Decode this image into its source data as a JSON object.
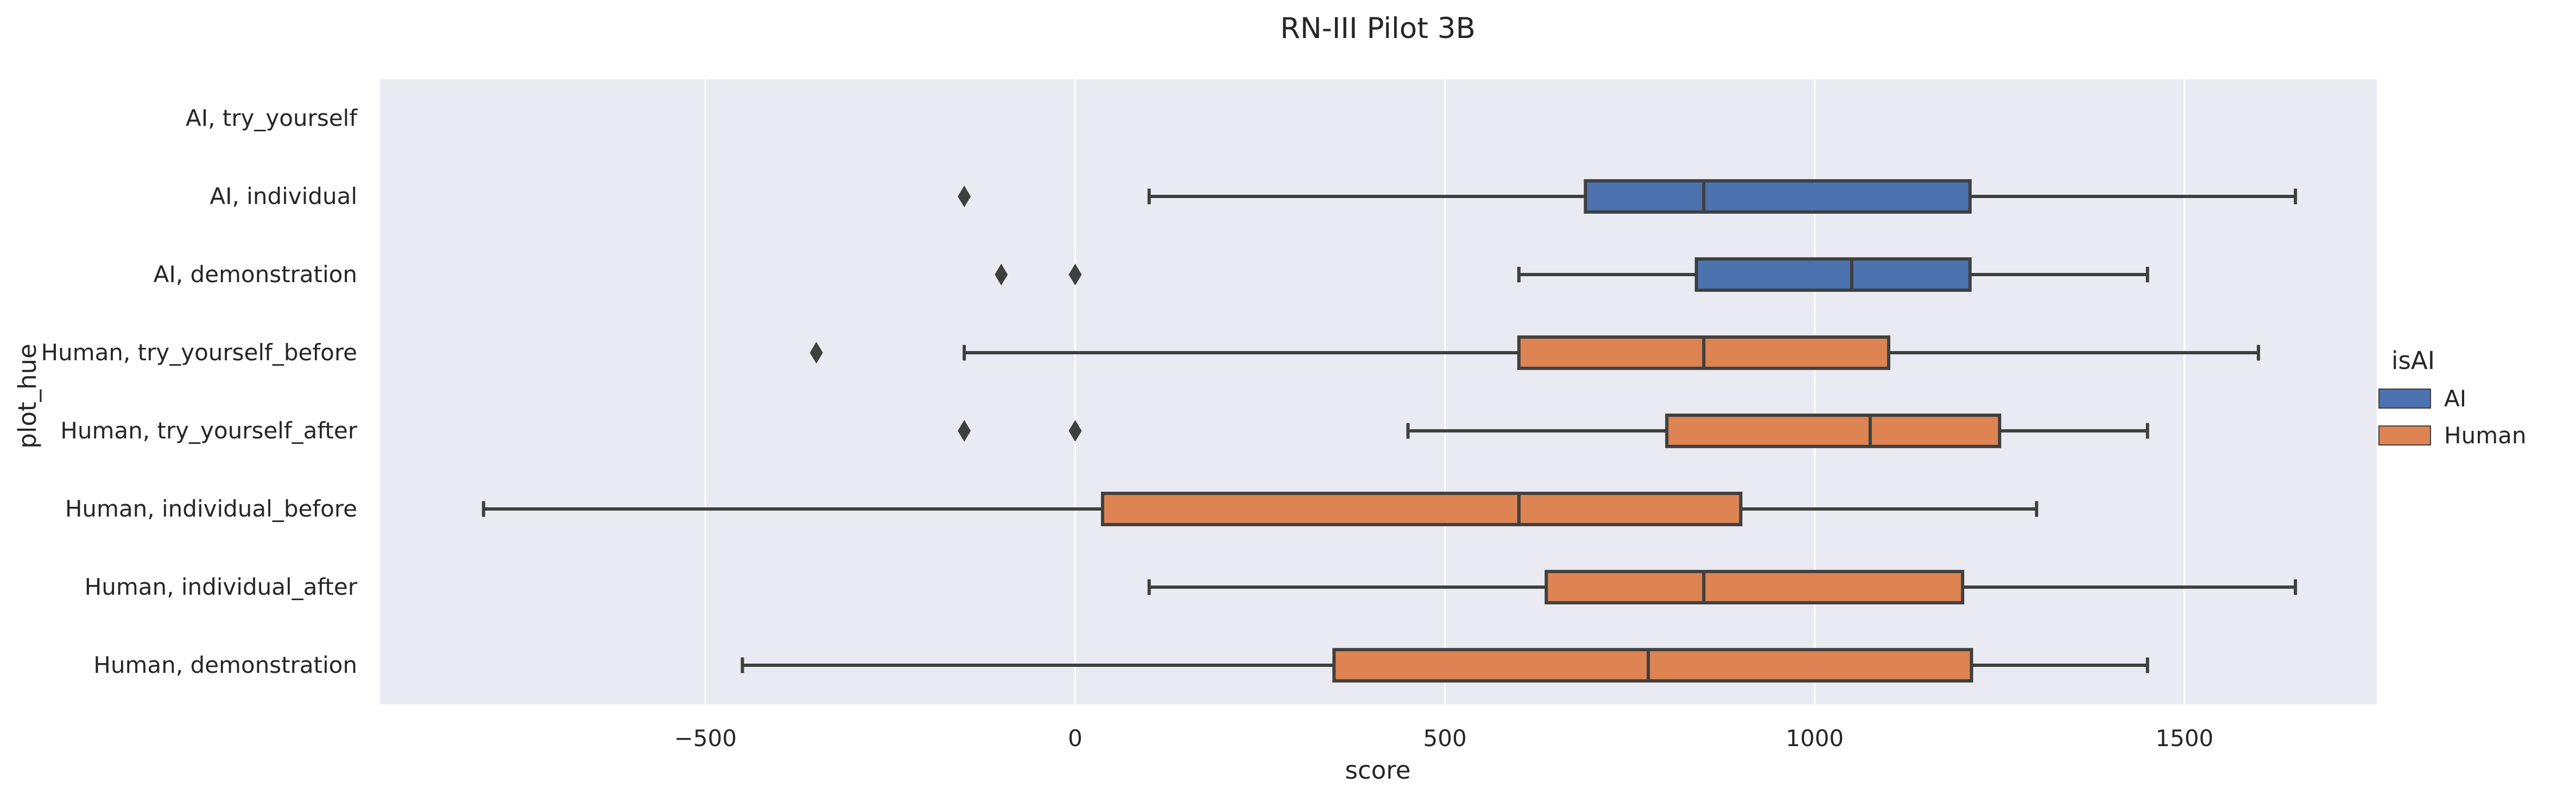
{
  "chart_data": {
    "type": "box",
    "orientation": "horizontal",
    "title": "RN-III Pilot 3B",
    "xlabel": "score",
    "ylabel": "plot_hue",
    "xlim": [
      -940,
      1760
    ],
    "xticks": [
      -500,
      0,
      500,
      1000,
      1500
    ],
    "xtick_labels": [
      "−500",
      "0",
      "500",
      "1000",
      "1500"
    ],
    "grid": true,
    "legend": {
      "title": "isAI",
      "placement": "right",
      "entries": [
        {
          "label": "AI",
          "color": "#4c72b0"
        },
        {
          "label": "Human",
          "color": "#dd8452"
        }
      ]
    },
    "categories": [
      "AI, try_yourself",
      "AI, individual",
      "AI, demonstration",
      "Human, try_yourself_before",
      "Human, try_yourself_after",
      "Human, individual_before",
      "Human, individual_after",
      "Human, demonstration"
    ],
    "boxes": [
      {
        "category": "AI, individual",
        "group": "AI",
        "whisker_low": 100,
        "q1": 690,
        "median": 850,
        "q3": 1210,
        "whisker_high": 1650,
        "outliers": [
          -150
        ]
      },
      {
        "category": "AI, demonstration",
        "group": "AI",
        "whisker_low": 600,
        "q1": 840,
        "median": 1050,
        "q3": 1210,
        "whisker_high": 1450,
        "outliers": [
          -100,
          0
        ]
      },
      {
        "category": "Human, try_yourself_before",
        "group": "Human",
        "whisker_low": -150,
        "q1": 600,
        "median": 850,
        "q3": 1100,
        "whisker_high": 1600,
        "outliers": [
          -350
        ]
      },
      {
        "category": "Human, try_yourself_after",
        "group": "Human",
        "whisker_low": 450,
        "q1": 800,
        "median": 1075,
        "q3": 1250,
        "whisker_high": 1450,
        "outliers": [
          -150,
          0
        ]
      },
      {
        "category": "Human, individual_before",
        "group": "Human",
        "whisker_low": -800,
        "q1": 37,
        "median": 600,
        "q3": 900,
        "whisker_high": 1300,
        "outliers": []
      },
      {
        "category": "Human, individual_after",
        "group": "Human",
        "whisker_low": 100,
        "q1": 637,
        "median": 850,
        "q3": 1200,
        "whisker_high": 1650,
        "outliers": []
      },
      {
        "category": "Human, demonstration",
        "group": "Human",
        "whisker_low": -450,
        "q1": 350,
        "median": 775,
        "q3": 1212,
        "whisker_high": 1450,
        "outliers": []
      }
    ],
    "colors": {
      "AI": "#4c72b0",
      "Human": "#dd8452",
      "plot_background": "#eaeaf2",
      "grid": "#ffffff",
      "box_edge": "#3f3f3f"
    }
  }
}
